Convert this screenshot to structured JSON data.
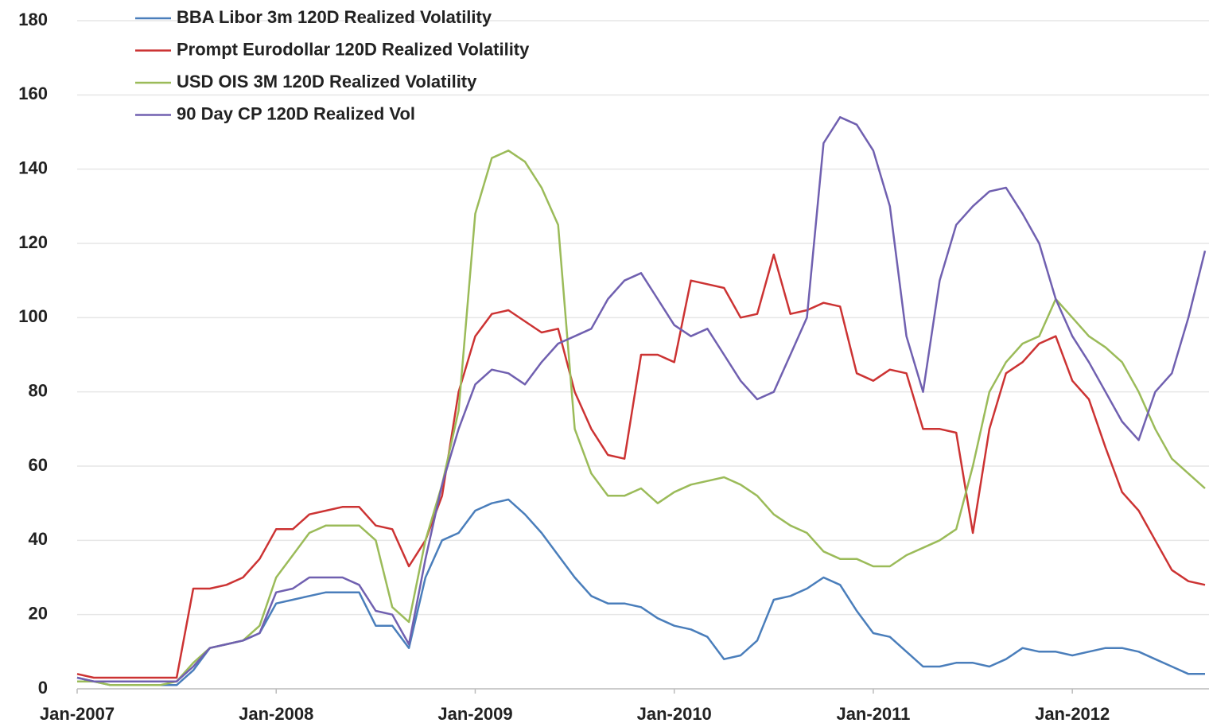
{
  "chart_data": {
    "type": "line",
    "x": [
      "2007-01",
      "2007-02",
      "2007-03",
      "2007-04",
      "2007-05",
      "2007-06",
      "2007-07",
      "2007-08",
      "2007-09",
      "2007-10",
      "2007-11",
      "2007-12",
      "2008-01",
      "2008-02",
      "2008-03",
      "2008-04",
      "2008-05",
      "2008-06",
      "2008-07",
      "2008-08",
      "2008-09",
      "2008-10",
      "2008-11",
      "2008-12",
      "2009-01",
      "2009-02",
      "2009-03",
      "2009-04",
      "2009-05",
      "2009-06",
      "2009-07",
      "2009-08",
      "2009-09",
      "2009-10",
      "2009-11",
      "2009-12",
      "2010-01",
      "2010-02",
      "2010-03",
      "2010-04",
      "2010-05",
      "2010-06",
      "2010-07",
      "2010-08",
      "2010-09",
      "2010-10",
      "2010-11",
      "2010-12",
      "2011-01",
      "2011-02",
      "2011-03",
      "2011-04",
      "2011-05",
      "2011-06",
      "2011-07",
      "2011-08",
      "2011-09",
      "2011-10",
      "2011-11",
      "2011-12",
      "2012-01",
      "2012-02",
      "2012-03",
      "2012-04",
      "2012-05",
      "2012-06",
      "2012-07",
      "2012-08",
      "2012-09"
    ],
    "series": [
      {
        "name": "BBA Libor 3m 120D Realized Volatility",
        "color": "#4a7ebb",
        "values": [
          3,
          2,
          1,
          1,
          1,
          1,
          1,
          5,
          11,
          12,
          13,
          15,
          23,
          24,
          25,
          26,
          26,
          26,
          17,
          17,
          11,
          30,
          40,
          42,
          48,
          50,
          51,
          47,
          42,
          36,
          30,
          25,
          23,
          23,
          22,
          19,
          17,
          16,
          14,
          8,
          9,
          13,
          24,
          25,
          27,
          30,
          28,
          21,
          15,
          14,
          10,
          6,
          6,
          7,
          7,
          6,
          8,
          11,
          10,
          10,
          9,
          10,
          11,
          11,
          10,
          8,
          6,
          4,
          4
        ]
      },
      {
        "name": "Prompt Eurodollar 120D Realized Volatility",
        "color": "#cc3333",
        "values": [
          4,
          3,
          3,
          3,
          3,
          3,
          3,
          27,
          27,
          28,
          30,
          35,
          43,
          43,
          47,
          48,
          49,
          49,
          44,
          43,
          33,
          40,
          52,
          80,
          95,
          101,
          102,
          99,
          96,
          97,
          80,
          70,
          63,
          62,
          90,
          90,
          88,
          110,
          109,
          108,
          100,
          101,
          117,
          101,
          102,
          104,
          103,
          85,
          83,
          86,
          85,
          70,
          70,
          69,
          42,
          70,
          85,
          88,
          93,
          95,
          83,
          78,
          65,
          53,
          48,
          40,
          32,
          29,
          28
        ]
      },
      {
        "name": "USD OIS 3M 120D Realized Volatility",
        "color": "#9bbb59",
        "values": [
          2,
          2,
          1,
          1,
          1,
          1,
          2,
          7,
          11,
          12,
          13,
          17,
          30,
          36,
          42,
          44,
          44,
          44,
          40,
          22,
          18,
          40,
          55,
          75,
          128,
          143,
          145,
          142,
          135,
          125,
          70,
          58,
          52,
          52,
          54,
          50,
          53,
          55,
          56,
          57,
          55,
          52,
          47,
          44,
          42,
          37,
          35,
          35,
          33,
          33,
          36,
          38,
          40,
          43,
          60,
          80,
          88,
          93,
          95,
          105,
          100,
          95,
          92,
          88,
          80,
          70,
          62,
          58,
          54
        ]
      },
      {
        "name": "90 Day CP 120D Realized Vol",
        "color": "#7060b0",
        "values": [
          3,
          2,
          2,
          2,
          2,
          2,
          2,
          6,
          11,
          12,
          13,
          15,
          26,
          27,
          30,
          30,
          30,
          28,
          21,
          20,
          12,
          35,
          55,
          70,
          82,
          86,
          85,
          82,
          88,
          93,
          95,
          97,
          105,
          110,
          112,
          105,
          98,
          95,
          97,
          90,
          83,
          78,
          80,
          90,
          100,
          147,
          154,
          152,
          145,
          130,
          95,
          80,
          110,
          125,
          130,
          134,
          135,
          128,
          120,
          105,
          95,
          88,
          80,
          72,
          67,
          80,
          85,
          100,
          118
        ]
      }
    ],
    "xlim": [
      "2007-01",
      "2012-09"
    ],
    "xticks": [
      {
        "value": "2007-01",
        "label": "Jan-2007"
      },
      {
        "value": "2008-01",
        "label": "Jan-2008"
      },
      {
        "value": "2009-01",
        "label": "Jan-2009"
      },
      {
        "value": "2010-01",
        "label": "Jan-2010"
      },
      {
        "value": "2011-01",
        "label": "Jan-2011"
      },
      {
        "value": "2012-01",
        "label": "Jan-2012"
      }
    ],
    "ylim": [
      0,
      180
    ],
    "yticks": [
      0,
      20,
      40,
      60,
      80,
      100,
      120,
      140,
      160,
      180
    ],
    "grid": true,
    "legend": "upper left"
  }
}
